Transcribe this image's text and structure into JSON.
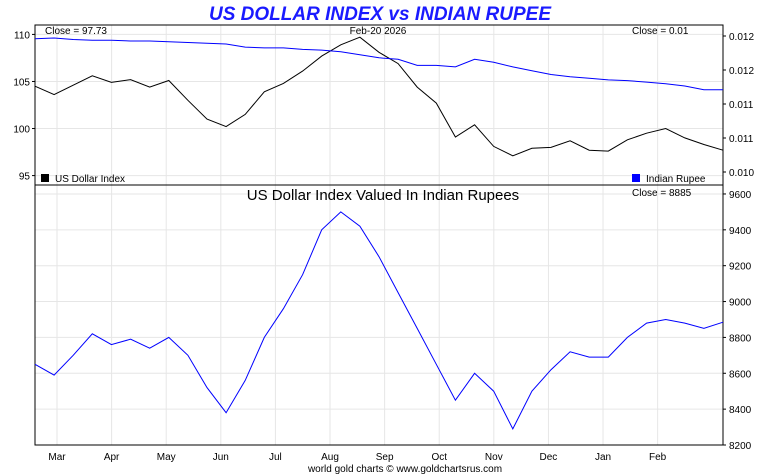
{
  "chart_data": [
    {
      "type": "line",
      "title": "US DOLLAR INDEX vs INDIAN RUPEE",
      "date_label": "Feb-20  2026",
      "left_close": "Close = 97.73",
      "right_close": "Close = 0.01",
      "left_axis_ticks": [
        "95",
        "100",
        "105",
        "110"
      ],
      "right_axis_ticks": [
        "0.010",
        "0.011",
        "0.011",
        "0.012",
        "0.012"
      ],
      "ylim_left": [
        94.0,
        111.0
      ],
      "ylim_right": [
        0.00995,
        0.01205
      ],
      "legend_left": "US Dollar Index",
      "legend_right": "Indian Rupee",
      "x_months": [
        "Mar",
        "Apr",
        "May",
        "Jun",
        "Jul",
        "Aug",
        "Sep",
        "Oct",
        "Nov",
        "Dec",
        "Jan",
        "Feb"
      ],
      "series": [
        {
          "name": "US Dollar Index",
          "color": "#000000",
          "axis": "left",
          "x": [
            0,
            10,
            20,
            30,
            40,
            50,
            60,
            70,
            80,
            90,
            100,
            110,
            120,
            130,
            140,
            150,
            160,
            170,
            180,
            190,
            200,
            210,
            220,
            230,
            240,
            250,
            260,
            270,
            280,
            290,
            300,
            310,
            320,
            330,
            340,
            350,
            360
          ],
          "values": [
            104.5,
            103.6,
            104.6,
            105.6,
            104.9,
            105.2,
            104.4,
            105.1,
            103.0,
            101.0,
            100.2,
            101.5,
            103.9,
            104.8,
            106.1,
            107.7,
            108.9,
            109.7,
            108.1,
            106.9,
            104.4,
            102.7,
            99.1,
            100.4,
            98.1,
            97.1,
            97.9,
            98.0,
            98.7,
            97.7,
            97.6,
            98.8,
            99.5,
            100.0,
            99.0,
            98.3,
            97.7
          ]
        },
        {
          "name": "Indian Rupee",
          "color": "#0000ff",
          "axis": "right",
          "x": [
            0,
            10,
            20,
            30,
            40,
            50,
            60,
            70,
            80,
            90,
            100,
            110,
            120,
            130,
            140,
            150,
            160,
            170,
            180,
            190,
            200,
            210,
            220,
            230,
            240,
            250,
            260,
            270,
            280,
            290,
            300,
            310,
            320,
            330,
            340,
            350,
            360
          ],
          "values": [
            0.01187,
            0.01188,
            0.01186,
            0.01185,
            0.01185,
            0.01184,
            0.01184,
            0.01183,
            0.01182,
            0.01181,
            0.0118,
            0.01176,
            0.01175,
            0.01175,
            0.01173,
            0.01172,
            0.0117,
            0.01166,
            0.01162,
            0.0116,
            0.01152,
            0.01152,
            0.0115,
            0.0116,
            0.01156,
            0.0115,
            0.01145,
            0.0114,
            0.01137,
            0.01135,
            0.01133,
            0.01132,
            0.0113,
            0.01128,
            0.01125,
            0.0112,
            0.0112
          ]
        }
      ]
    },
    {
      "type": "line",
      "title": "US Dollar Index Valued In Indian Rupees",
      "close_label": "Close = 8885",
      "right_axis_ticks": [
        "8200",
        "8400",
        "8600",
        "8800",
        "9000",
        "9200",
        "9400",
        "9600"
      ],
      "ylim": [
        8200,
        9650
      ],
      "x_months": [
        "Mar",
        "Apr",
        "May",
        "Jun",
        "Jul",
        "Aug",
        "Sep",
        "Oct",
        "Nov",
        "Dec",
        "Jan",
        "Feb"
      ],
      "series": [
        {
          "name": "",
          "color": "#0000ff",
          "x": [
            0,
            10,
            20,
            30,
            40,
            50,
            60,
            70,
            80,
            90,
            100,
            110,
            120,
            130,
            140,
            150,
            160,
            170,
            180,
            190,
            200,
            210,
            220,
            230,
            240,
            250,
            260,
            270,
            280,
            290,
            300,
            310,
            320,
            330,
            340,
            350,
            360
          ],
          "values": [
            8650,
            8590,
            8700,
            8820,
            8760,
            8790,
            8740,
            8800,
            8700,
            8520,
            8380,
            8560,
            8800,
            8960,
            9150,
            9400,
            9500,
            9420,
            9250,
            9050,
            8850,
            8650,
            8450,
            8600,
            8500,
            8290,
            8500,
            8620,
            8720,
            8690,
            8690,
            8800,
            8880,
            8900,
            8880,
            8850,
            8885
          ]
        }
      ]
    },
    {
      "credit": "world gold charts © www.goldchartsrus.com"
    }
  ]
}
